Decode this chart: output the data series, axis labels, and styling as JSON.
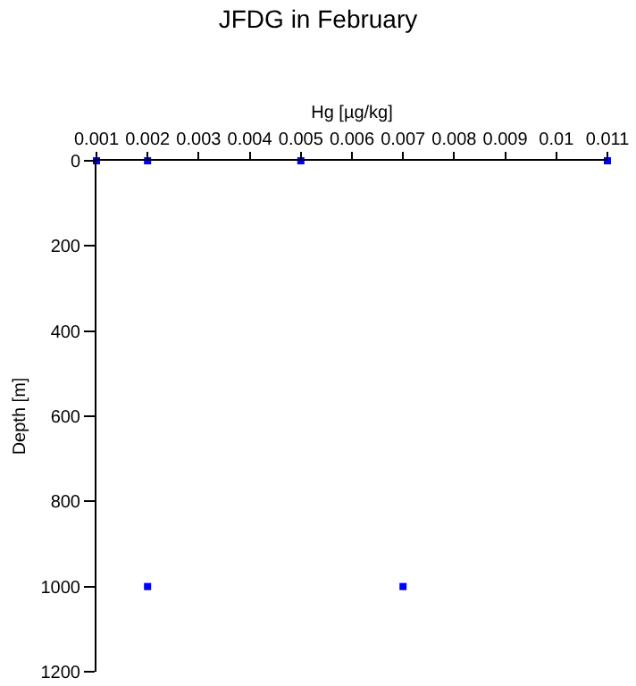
{
  "chart_data": {
    "type": "scatter",
    "title": "JFDG in February",
    "xlabel": "Hg [µg/kg]",
    "ylabel": "Depth [m]",
    "x": [
      0.001,
      0.002,
      0.005,
      0.011,
      0.002,
      0.007
    ],
    "series": [
      {
        "color": "#0000ff",
        "values": [
          0,
          0,
          0,
          0,
          1000,
          1000
        ]
      }
    ],
    "xlim": [
      0.001,
      0.011
    ],
    "xticks": [
      0.001,
      0.002,
      0.003,
      0.004,
      0.005,
      0.006,
      0.007,
      0.008,
      0.009,
      0.01,
      0.011
    ],
    "ylim": [
      1200,
      0
    ],
    "yticks": [
      0,
      200,
      400,
      600,
      800,
      1000,
      1200
    ],
    "marker": "square",
    "grid": false,
    "legend": false
  }
}
